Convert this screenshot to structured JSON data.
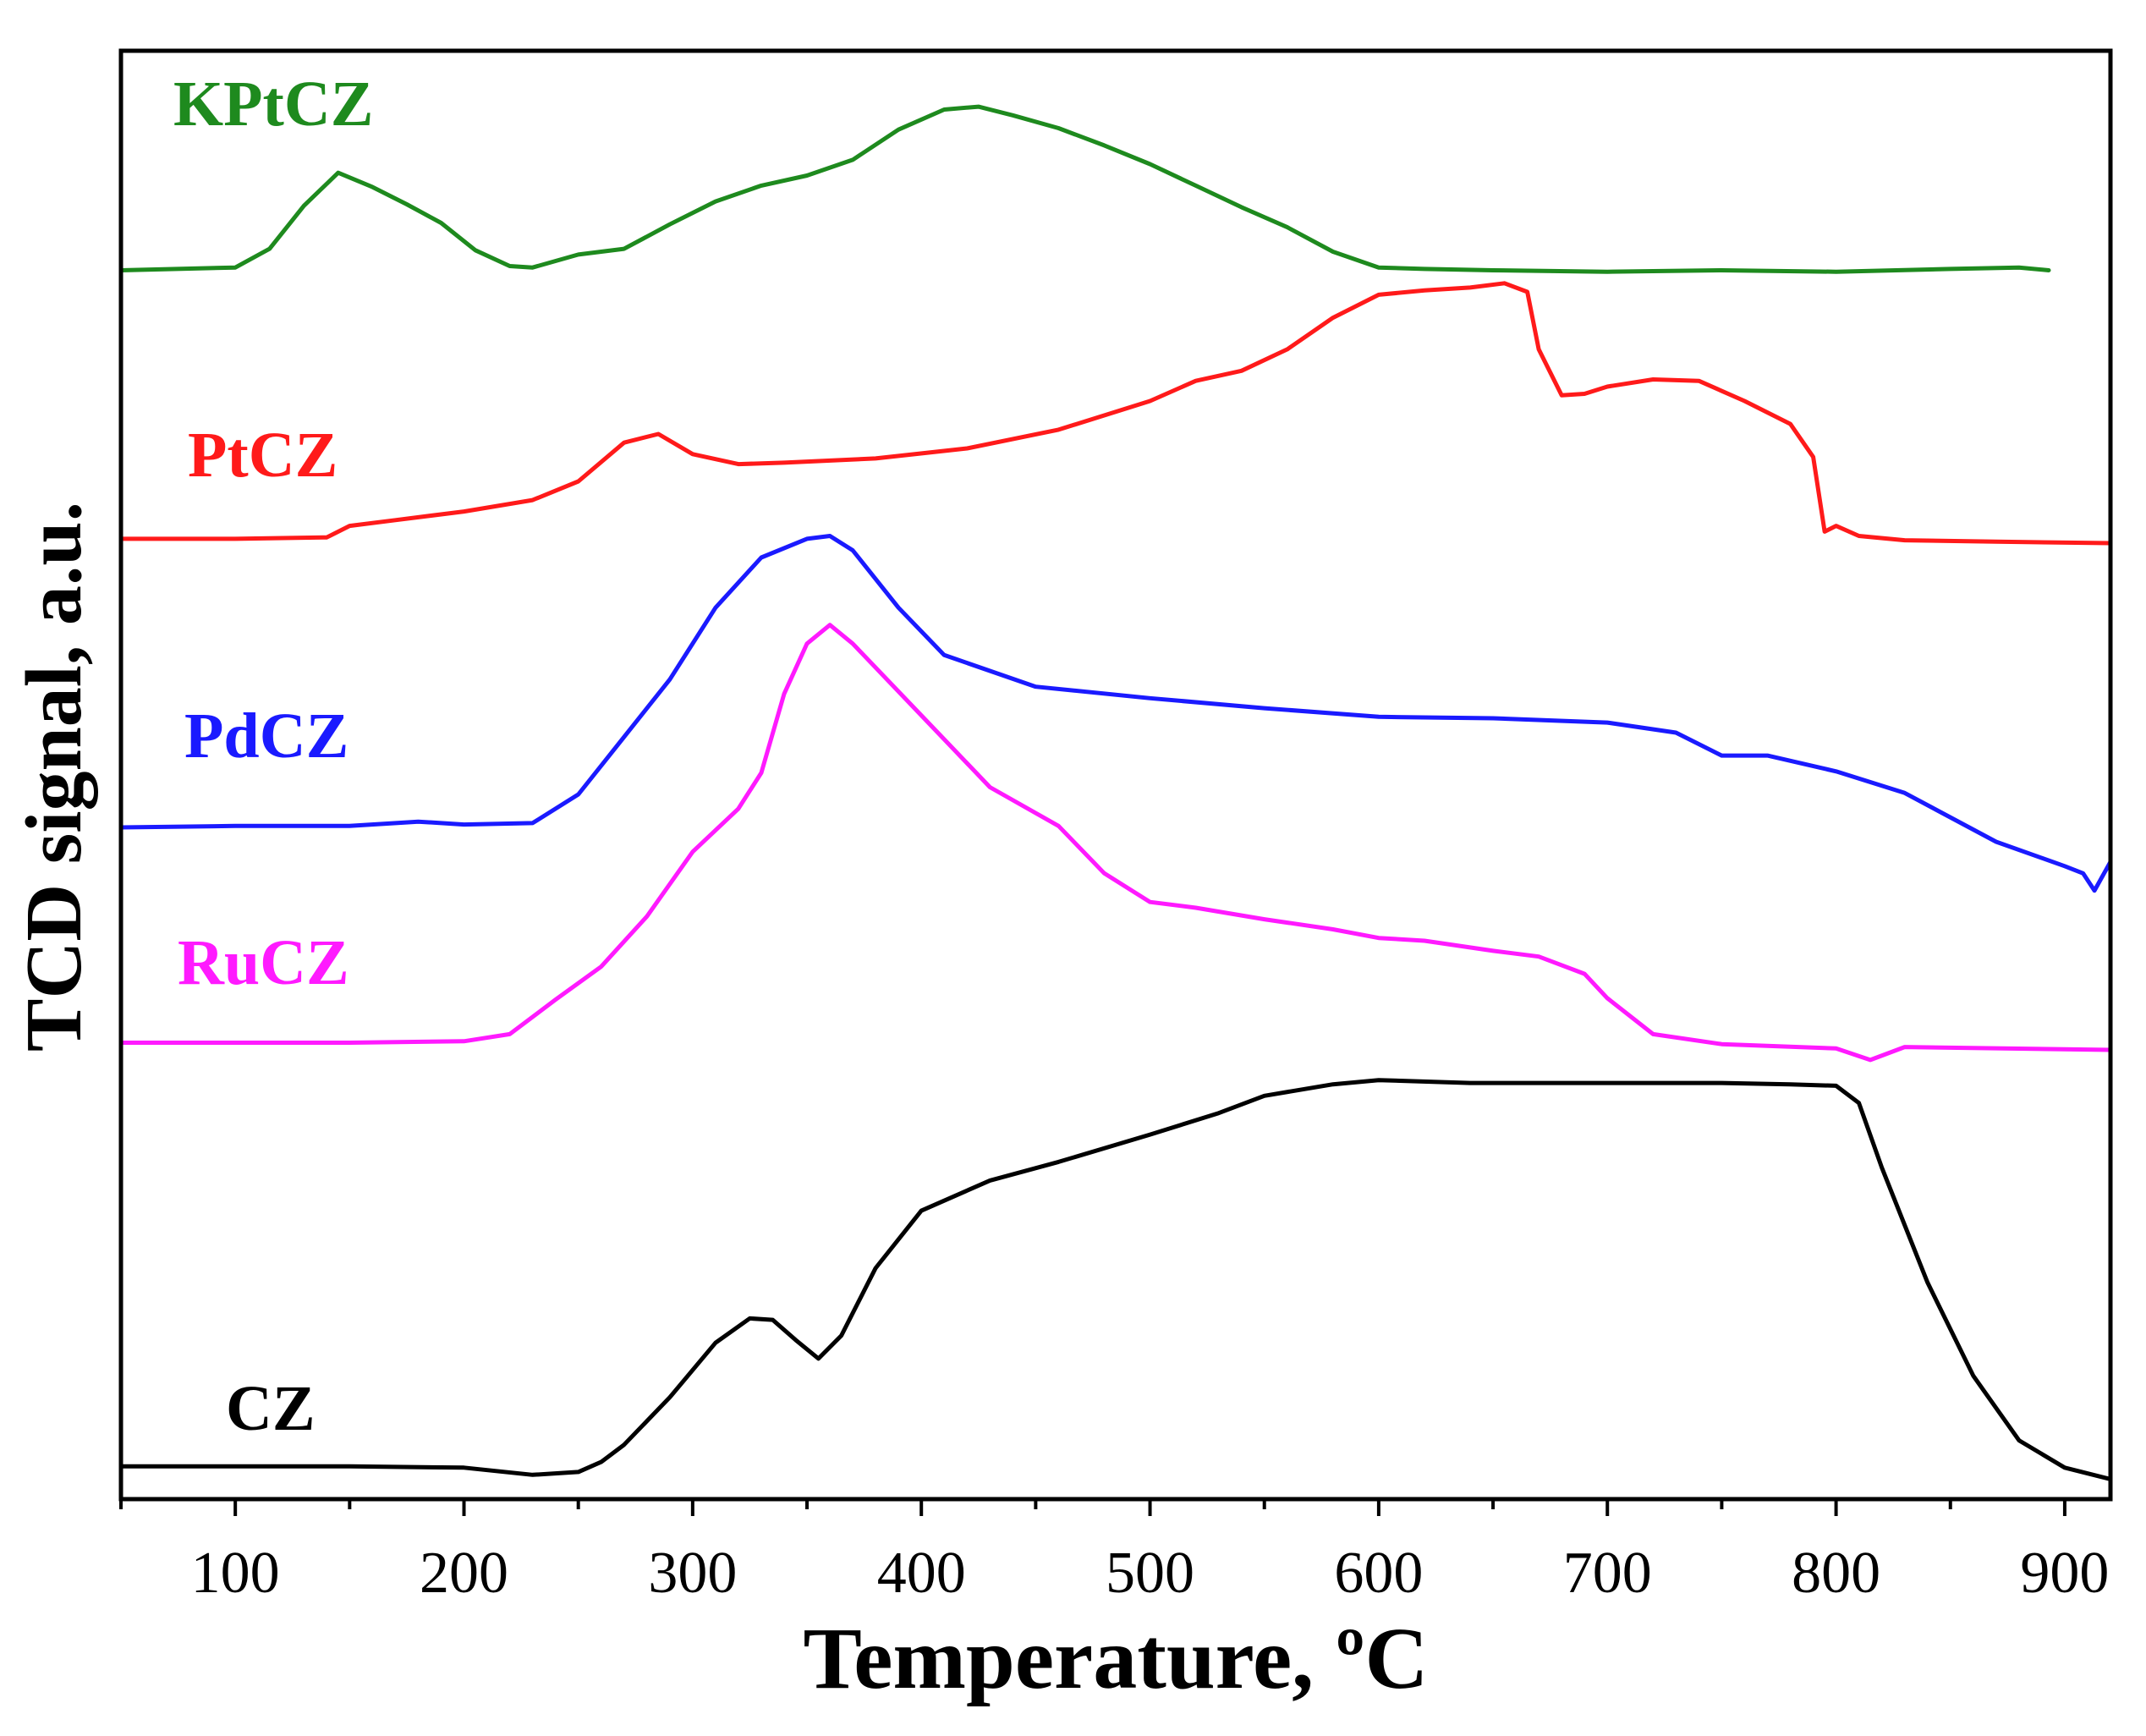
{
  "chart_data": {
    "type": "line",
    "title": "",
    "xlabel": "Temperature, ºC",
    "ylabel": "TCD signal, a.u.",
    "xlim": [
      50,
      920
    ],
    "ylim": [
      0,
      100
    ],
    "xticks": [
      100,
      200,
      300,
      400,
      500,
      600,
      700,
      800,
      900
    ],
    "x_minor_step": 50,
    "yticks_labeled": false,
    "grid": false,
    "legend": "inline labels at left of each trace",
    "series": [
      {
        "name": "KPtCZ",
        "color": "#1e8a1e",
        "x": [
          50,
          100,
          115,
          130,
          145,
          160,
          175,
          190,
          205,
          220,
          230,
          250,
          270,
          290,
          310,
          330,
          350,
          370,
          390,
          410,
          425,
          440,
          460,
          480,
          500,
          520,
          540,
          560,
          580,
          600,
          620,
          650,
          700,
          750,
          800,
          850,
          880,
          893
        ],
        "y": [
          85.0,
          85.2,
          86.5,
          89.5,
          91.8,
          90.8,
          89.6,
          88.3,
          86.4,
          85.3,
          85.2,
          86.1,
          86.5,
          88.2,
          89.8,
          90.9,
          91.6,
          92.7,
          94.8,
          96.2,
          96.4,
          95.8,
          94.9,
          93.7,
          92.4,
          90.9,
          89.4,
          88.0,
          86.3,
          85.2,
          85.1,
          85.0,
          84.9,
          85.0,
          84.9,
          85.1,
          85.2,
          85.0
        ]
      },
      {
        "name": "PtCZ",
        "color": "#ff1a1a",
        "x": [
          50,
          100,
          140,
          150,
          170,
          200,
          230,
          250,
          270,
          285,
          300,
          320,
          340,
          380,
          420,
          460,
          500,
          520,
          540,
          560,
          580,
          600,
          620,
          640,
          655,
          665,
          670,
          680,
          690,
          700,
          720,
          740,
          760,
          780,
          790,
          795,
          800,
          810,
          830,
          870,
          920
        ],
        "y": [
          66.3,
          66.3,
          66.4,
          67.2,
          67.6,
          68.2,
          69.0,
          70.3,
          73.0,
          73.6,
          72.2,
          71.5,
          71.6,
          71.9,
          72.6,
          73.9,
          75.9,
          77.3,
          78.0,
          79.5,
          81.7,
          83.3,
          83.6,
          83.8,
          84.1,
          83.5,
          79.5,
          76.3,
          76.4,
          76.9,
          77.4,
          77.3,
          75.9,
          74.3,
          72.0,
          66.8,
          67.2,
          66.5,
          66.2,
          66.1,
          66.0
        ]
      },
      {
        "name": "PdCZ",
        "color": "#1a1aff",
        "x": [
          50,
          100,
          150,
          180,
          200,
          230,
          250,
          270,
          290,
          310,
          330,
          350,
          360,
          370,
          390,
          410,
          450,
          500,
          550,
          600,
          650,
          700,
          730,
          750,
          770,
          800,
          830,
          870,
          900,
          908,
          913,
          920
        ],
        "y": [
          46.2,
          46.3,
          46.3,
          46.6,
          46.4,
          46.5,
          48.5,
          52.5,
          56.5,
          61.5,
          65.0,
          66.3,
          66.5,
          65.5,
          61.5,
          58.2,
          56.0,
          55.2,
          54.5,
          53.9,
          53.8,
          53.5,
          52.8,
          51.2,
          51.2,
          50.1,
          48.6,
          45.2,
          43.5,
          43.0,
          41.8,
          43.8
        ]
      },
      {
        "name": "RuCZ",
        "color": "#ff1aff",
        "x": [
          50,
          100,
          150,
          200,
          220,
          240,
          260,
          280,
          300,
          320,
          330,
          340,
          350,
          360,
          370,
          400,
          430,
          460,
          480,
          500,
          520,
          550,
          580,
          600,
          620,
          650,
          670,
          690,
          700,
          720,
          750,
          800,
          815,
          830,
          920
        ],
        "y": [
          31.2,
          31.2,
          31.2,
          31.3,
          31.8,
          34.2,
          36.5,
          40.0,
          44.5,
          47.5,
          50.0,
          55.5,
          59.0,
          60.3,
          59.0,
          54.0,
          49.0,
          46.3,
          43.0,
          41.0,
          40.6,
          39.8,
          39.1,
          38.5,
          38.3,
          37.6,
          37.2,
          36.0,
          34.3,
          31.8,
          31.1,
          30.8,
          30.0,
          30.9,
          30.7
        ]
      },
      {
        "name": "CZ",
        "color": "#000000",
        "x": [
          50,
          100,
          150,
          200,
          230,
          250,
          260,
          270,
          290,
          310,
          325,
          335,
          345,
          355,
          365,
          380,
          400,
          430,
          460,
          500,
          530,
          550,
          580,
          600,
          640,
          700,
          750,
          780,
          800,
          810,
          820,
          840,
          860,
          880,
          900,
          920
        ],
        "y": [
          1.7,
          1.7,
          1.7,
          1.6,
          1.1,
          1.3,
          2.0,
          3.2,
          6.5,
          10.3,
          12.0,
          11.9,
          10.5,
          9.2,
          10.8,
          15.5,
          19.5,
          21.6,
          22.9,
          24.8,
          26.3,
          27.5,
          28.3,
          28.6,
          28.4,
          28.4,
          28.4,
          28.3,
          28.2,
          27.0,
          22.5,
          14.5,
          8.0,
          3.5,
          1.6,
          0.8
        ]
      }
    ]
  }
}
